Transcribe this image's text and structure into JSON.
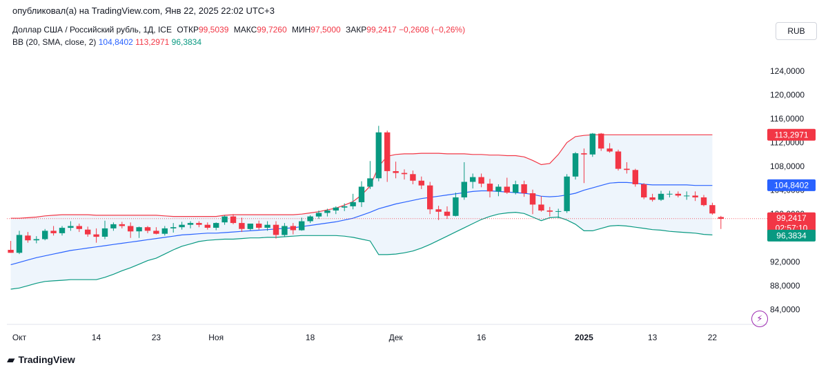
{
  "publisher": "опубликовал(а) на TradingView.com, Янв 22, 2025 22:02 UTC+3",
  "legend": {
    "symbol": "Доллар США / Российский рубль, 1Д, ICE",
    "open_label": "ОТКР",
    "open": "99,5039",
    "high_label": "МАКС",
    "high": "99,7260",
    "low_label": "МИН",
    "low": "97,5000",
    "close_label": "ЗАКР",
    "close": "99,2417",
    "change": "−0,2608 (−0,26%)",
    "bb_label": "BB (20, SMA, close, 2)",
    "bb_basis": "104,8402",
    "bb_upper": "113,2971",
    "bb_lower": "96,3834"
  },
  "currency_button": "RUB",
  "branding": "TradingView",
  "icons": {
    "logo": "tradingview-logo-icon",
    "flash": "lightning-icon"
  },
  "colors": {
    "up": "#089981",
    "down": "#f23645",
    "basis": "#2962ff",
    "band_fill": "#e8f2fb"
  },
  "chart_data": {
    "type": "candlestick",
    "title": "Доллар США / Российский рубль, 1Д, ICE",
    "ylim": [
      81.5,
      128.5
    ],
    "y_ticks": [
      "84,0000",
      "88,0000",
      "92,0000",
      "96,0000",
      "100,0000",
      "104,0000",
      "108,0000",
      "112,0000",
      "116,0000",
      "120,0000",
      "124,0000"
    ],
    "x_ticks": [
      {
        "label": "Окт",
        "i": 1
      },
      {
        "label": "14",
        "i": 10
      },
      {
        "label": "23",
        "i": 17
      },
      {
        "label": "Ноя",
        "i": 24
      },
      {
        "label": "18",
        "i": 35
      },
      {
        "label": "Дек",
        "i": 45
      },
      {
        "label": "16",
        "i": 55
      },
      {
        "label": "2025",
        "i": 67
      },
      {
        "label": "13",
        "i": 75
      },
      {
        "label": "22",
        "i": 82
      }
    ],
    "price_labels": [
      {
        "value": 113.2971,
        "text": "113,2971",
        "color": "#f23645"
      },
      {
        "value": 104.8402,
        "text": "104,8402",
        "color": "#2962ff"
      },
      {
        "value": 99.2417,
        "text": "99,2417",
        "sub": "02:57:10",
        "color": "#f23645"
      },
      {
        "value": 96.3834,
        "text": "96,3834",
        "color": "#089981"
      }
    ],
    "last_price": 99.2417,
    "candles": [
      {
        "o": 94.0,
        "h": 95.5,
        "l": 93.5,
        "c": 93.5
      },
      {
        "o": 93.5,
        "h": 97.2,
        "l": 93.3,
        "c": 96.5
      },
      {
        "o": 96.4,
        "h": 97.0,
        "l": 95.2,
        "c": 95.6
      },
      {
        "o": 95.6,
        "h": 96.3,
        "l": 95.1,
        "c": 95.8
      },
      {
        "o": 95.8,
        "h": 97.5,
        "l": 95.6,
        "c": 97.2
      },
      {
        "o": 97.2,
        "h": 98.0,
        "l": 96.4,
        "c": 96.8
      },
      {
        "o": 96.8,
        "h": 98.0,
        "l": 96.4,
        "c": 97.7
      },
      {
        "o": 97.7,
        "h": 98.8,
        "l": 97.2,
        "c": 98.0
      },
      {
        "o": 98.0,
        "h": 98.4,
        "l": 97.0,
        "c": 97.5
      },
      {
        "o": 97.4,
        "h": 97.9,
        "l": 96.2,
        "c": 96.6
      },
      {
        "o": 96.6,
        "h": 97.6,
        "l": 95.2,
        "c": 96.2
      },
      {
        "o": 96.2,
        "h": 98.9,
        "l": 95.8,
        "c": 97.6
      },
      {
        "o": 97.6,
        "h": 98.6,
        "l": 97.2,
        "c": 98.3
      },
      {
        "o": 98.3,
        "h": 98.7,
        "l": 97.6,
        "c": 98.0
      },
      {
        "o": 98.0,
        "h": 98.6,
        "l": 96.0,
        "c": 97.1
      },
      {
        "o": 97.1,
        "h": 97.9,
        "l": 96.0,
        "c": 97.8
      },
      {
        "o": 97.8,
        "h": 98.0,
        "l": 96.8,
        "c": 97.2
      },
      {
        "o": 97.2,
        "h": 97.8,
        "l": 96.6,
        "c": 96.7
      },
      {
        "o": 96.7,
        "h": 98.0,
        "l": 96.4,
        "c": 97.6
      },
      {
        "o": 97.6,
        "h": 98.5,
        "l": 96.9,
        "c": 97.8
      },
      {
        "o": 97.8,
        "h": 98.7,
        "l": 97.4,
        "c": 98.2
      },
      {
        "o": 98.2,
        "h": 98.8,
        "l": 97.6,
        "c": 98.5
      },
      {
        "o": 98.5,
        "h": 98.8,
        "l": 97.8,
        "c": 98.2
      },
      {
        "o": 98.2,
        "h": 98.6,
        "l": 97.4,
        "c": 97.7
      },
      {
        "o": 97.7,
        "h": 98.6,
        "l": 97.3,
        "c": 98.5
      },
      {
        "o": 98.6,
        "h": 99.8,
        "l": 98.2,
        "c": 99.6
      },
      {
        "o": 99.6,
        "h": 100.0,
        "l": 98.3,
        "c": 98.5
      },
      {
        "o": 98.5,
        "h": 99.4,
        "l": 97.0,
        "c": 97.5
      },
      {
        "o": 97.5,
        "h": 98.4,
        "l": 97.3,
        "c": 98.4
      },
      {
        "o": 98.4,
        "h": 98.9,
        "l": 97.4,
        "c": 97.7
      },
      {
        "o": 97.7,
        "h": 98.8,
        "l": 97.2,
        "c": 98.2
      },
      {
        "o": 98.2,
        "h": 98.8,
        "l": 95.9,
        "c": 96.5
      },
      {
        "o": 96.5,
        "h": 98.5,
        "l": 96.2,
        "c": 98.0
      },
      {
        "o": 98.0,
        "h": 98.5,
        "l": 96.6,
        "c": 97.3
      },
      {
        "o": 97.3,
        "h": 99.4,
        "l": 97.2,
        "c": 98.8
      },
      {
        "o": 98.8,
        "h": 99.8,
        "l": 98.5,
        "c": 99.6
      },
      {
        "o": 99.6,
        "h": 100.6,
        "l": 99.2,
        "c": 100.2
      },
      {
        "o": 100.2,
        "h": 100.9,
        "l": 99.6,
        "c": 100.6
      },
      {
        "o": 100.6,
        "h": 101.3,
        "l": 100.0,
        "c": 101.1
      },
      {
        "o": 101.1,
        "h": 101.8,
        "l": 100.5,
        "c": 101.3
      },
      {
        "o": 101.3,
        "h": 103.4,
        "l": 100.8,
        "c": 102.0
      },
      {
        "o": 102.0,
        "h": 105.5,
        "l": 101.2,
        "c": 104.6
      },
      {
        "o": 104.6,
        "h": 108.9,
        "l": 104.2,
        "c": 106.0
      },
      {
        "o": 106.0,
        "h": 114.8,
        "l": 105.5,
        "c": 113.7
      },
      {
        "o": 113.7,
        "h": 114.0,
        "l": 105.4,
        "c": 107.2
      },
      {
        "o": 107.2,
        "h": 108.8,
        "l": 106.0,
        "c": 106.9
      },
      {
        "o": 106.9,
        "h": 107.5,
        "l": 105.8,
        "c": 106.7
      },
      {
        "o": 106.7,
        "h": 107.3,
        "l": 105.0,
        "c": 105.6
      },
      {
        "o": 105.6,
        "h": 106.3,
        "l": 104.2,
        "c": 104.8
      },
      {
        "o": 104.8,
        "h": 105.4,
        "l": 100.0,
        "c": 100.8
      },
      {
        "o": 100.8,
        "h": 101.4,
        "l": 99.0,
        "c": 100.4
      },
      {
        "o": 100.4,
        "h": 101.3,
        "l": 99.2,
        "c": 99.7
      },
      {
        "o": 99.7,
        "h": 103.6,
        "l": 99.6,
        "c": 102.8
      },
      {
        "o": 102.8,
        "h": 108.7,
        "l": 102.4,
        "c": 105.4
      },
      {
        "o": 105.4,
        "h": 106.8,
        "l": 104.3,
        "c": 106.2
      },
      {
        "o": 106.2,
        "h": 106.8,
        "l": 104.5,
        "c": 105.1
      },
      {
        "o": 105.1,
        "h": 105.9,
        "l": 102.8,
        "c": 103.8
      },
      {
        "o": 103.8,
        "h": 105.0,
        "l": 103.0,
        "c": 104.6
      },
      {
        "o": 104.6,
        "h": 106.1,
        "l": 103.4,
        "c": 103.6
      },
      {
        "o": 103.6,
        "h": 105.6,
        "l": 103.3,
        "c": 105.0
      },
      {
        "o": 105.0,
        "h": 105.6,
        "l": 102.9,
        "c": 103.5
      },
      {
        "o": 103.5,
        "h": 104.1,
        "l": 100.0,
        "c": 101.6
      },
      {
        "o": 101.6,
        "h": 103.0,
        "l": 100.4,
        "c": 100.6
      },
      {
        "o": 100.6,
        "h": 101.2,
        "l": 99.6,
        "c": 100.4
      },
      {
        "o": 100.4,
        "h": 100.9,
        "l": 99.3,
        "c": 100.5
      },
      {
        "o": 100.5,
        "h": 106.7,
        "l": 100.2,
        "c": 106.3
      },
      {
        "o": 106.3,
        "h": 110.4,
        "l": 105.8,
        "c": 110.2
      },
      {
        "o": 110.2,
        "h": 111.0,
        "l": 105.2,
        "c": 110.0
      },
      {
        "o": 110.0,
        "h": 113.6,
        "l": 109.6,
        "c": 113.5
      },
      {
        "o": 113.5,
        "h": 113.6,
        "l": 110.6,
        "c": 111.0
      },
      {
        "o": 111.0,
        "h": 111.9,
        "l": 110.3,
        "c": 110.5
      },
      {
        "o": 110.5,
        "h": 110.8,
        "l": 107.3,
        "c": 107.6
      },
      {
        "o": 107.6,
        "h": 108.7,
        "l": 106.8,
        "c": 107.4
      },
      {
        "o": 107.4,
        "h": 107.6,
        "l": 104.6,
        "c": 105.0
      },
      {
        "o": 105.0,
        "h": 105.2,
        "l": 102.5,
        "c": 102.8
      },
      {
        "o": 102.8,
        "h": 103.4,
        "l": 102.1,
        "c": 102.4
      },
      {
        "o": 102.4,
        "h": 103.9,
        "l": 102.2,
        "c": 103.4
      },
      {
        "o": 103.4,
        "h": 103.9,
        "l": 102.8,
        "c": 103.4
      },
      {
        "o": 103.4,
        "h": 103.8,
        "l": 102.8,
        "c": 103.1
      },
      {
        "o": 103.1,
        "h": 103.8,
        "l": 102.4,
        "c": 103.1
      },
      {
        "o": 103.1,
        "h": 103.8,
        "l": 102.2,
        "c": 102.8
      },
      {
        "o": 102.8,
        "h": 103.2,
        "l": 101.3,
        "c": 101.5
      },
      {
        "o": 101.5,
        "h": 101.9,
        "l": 99.9,
        "c": 100.1
      },
      {
        "o": 99.5,
        "h": 99.7,
        "l": 97.5,
        "c": 99.2
      }
    ],
    "bb_upper": [
      99.3,
      99.3,
      99.4,
      99.5,
      99.7,
      99.8,
      99.9,
      99.9,
      99.9,
      99.9,
      99.8,
      99.8,
      99.8,
      99.8,
      99.8,
      99.8,
      99.8,
      99.8,
      99.7,
      99.6,
      99.6,
      99.6,
      99.6,
      99.6,
      99.6,
      99.8,
      99.9,
      99.9,
      99.9,
      99.9,
      99.9,
      99.9,
      99.9,
      99.9,
      100.0,
      100.2,
      100.4,
      100.7,
      101.0,
      101.5,
      102.1,
      103.2,
      104.7,
      108.0,
      109.7,
      110.0,
      110.1,
      110.1,
      110.2,
      110.2,
      110.2,
      110.1,
      110.1,
      110.1,
      110.0,
      110.0,
      109.9,
      109.9,
      109.8,
      109.8,
      109.6,
      109.0,
      108.3,
      108.5,
      110.0,
      112.0,
      113.0,
      113.2,
      113.3,
      113.3,
      113.3,
      113.3,
      113.3,
      113.3,
      113.3,
      113.3,
      113.3,
      113.3,
      113.3,
      113.3,
      113.3,
      113.3,
      113.3
    ],
    "bb_basis": [
      91.5,
      91.9,
      92.3,
      92.7,
      93.0,
      93.3,
      93.6,
      93.9,
      94.1,
      94.3,
      94.5,
      94.7,
      94.9,
      95.1,
      95.3,
      95.5,
      95.7,
      95.9,
      96.1,
      96.3,
      96.5,
      96.6,
      96.7,
      96.8,
      96.8,
      96.9,
      97.0,
      97.1,
      97.2,
      97.3,
      97.4,
      97.5,
      97.6,
      97.7,
      97.9,
      98.1,
      98.3,
      98.5,
      98.7,
      99.0,
      99.3,
      99.8,
      100.3,
      100.9,
      101.3,
      101.7,
      102.0,
      102.3,
      102.6,
      102.8,
      103.0,
      103.2,
      103.4,
      103.6,
      103.8,
      103.9,
      103.9,
      103.8,
      103.7,
      103.6,
      103.5,
      103.3,
      103.0,
      102.9,
      103.0,
      103.2,
      103.5,
      104.0,
      104.4,
      104.8,
      105.2,
      105.3,
      105.3,
      105.2,
      105.0,
      104.9,
      104.9,
      104.9,
      104.9,
      104.9,
      104.8,
      104.8,
      104.8
    ],
    "bb_lower": [
      87.4,
      87.6,
      88.0,
      88.4,
      88.7,
      88.8,
      88.9,
      89.0,
      89.0,
      89.0,
      89.0,
      89.4,
      89.9,
      90.5,
      91.0,
      91.6,
      92.2,
      92.6,
      93.3,
      94.0,
      94.6,
      95.0,
      95.4,
      95.6,
      95.7,
      95.8,
      95.8,
      95.9,
      96.0,
      96.0,
      96.1,
      96.1,
      96.2,
      96.3,
      96.4,
      96.4,
      96.4,
      96.4,
      96.4,
      96.3,
      96.1,
      95.8,
      95.5,
      93.2,
      93.2,
      93.3,
      93.5,
      93.8,
      94.3,
      94.9,
      95.6,
      96.3,
      97.0,
      97.7,
      98.4,
      99.1,
      99.6,
      100.0,
      100.2,
      100.3,
      100.1,
      99.5,
      98.9,
      99.4,
      99.5,
      99.0,
      98.3,
      97.2,
      97.2,
      97.6,
      98.0,
      98.1,
      98.0,
      97.8,
      97.6,
      97.4,
      97.3,
      97.1,
      97.0,
      96.9,
      96.8,
      96.6,
      96.5
    ]
  }
}
